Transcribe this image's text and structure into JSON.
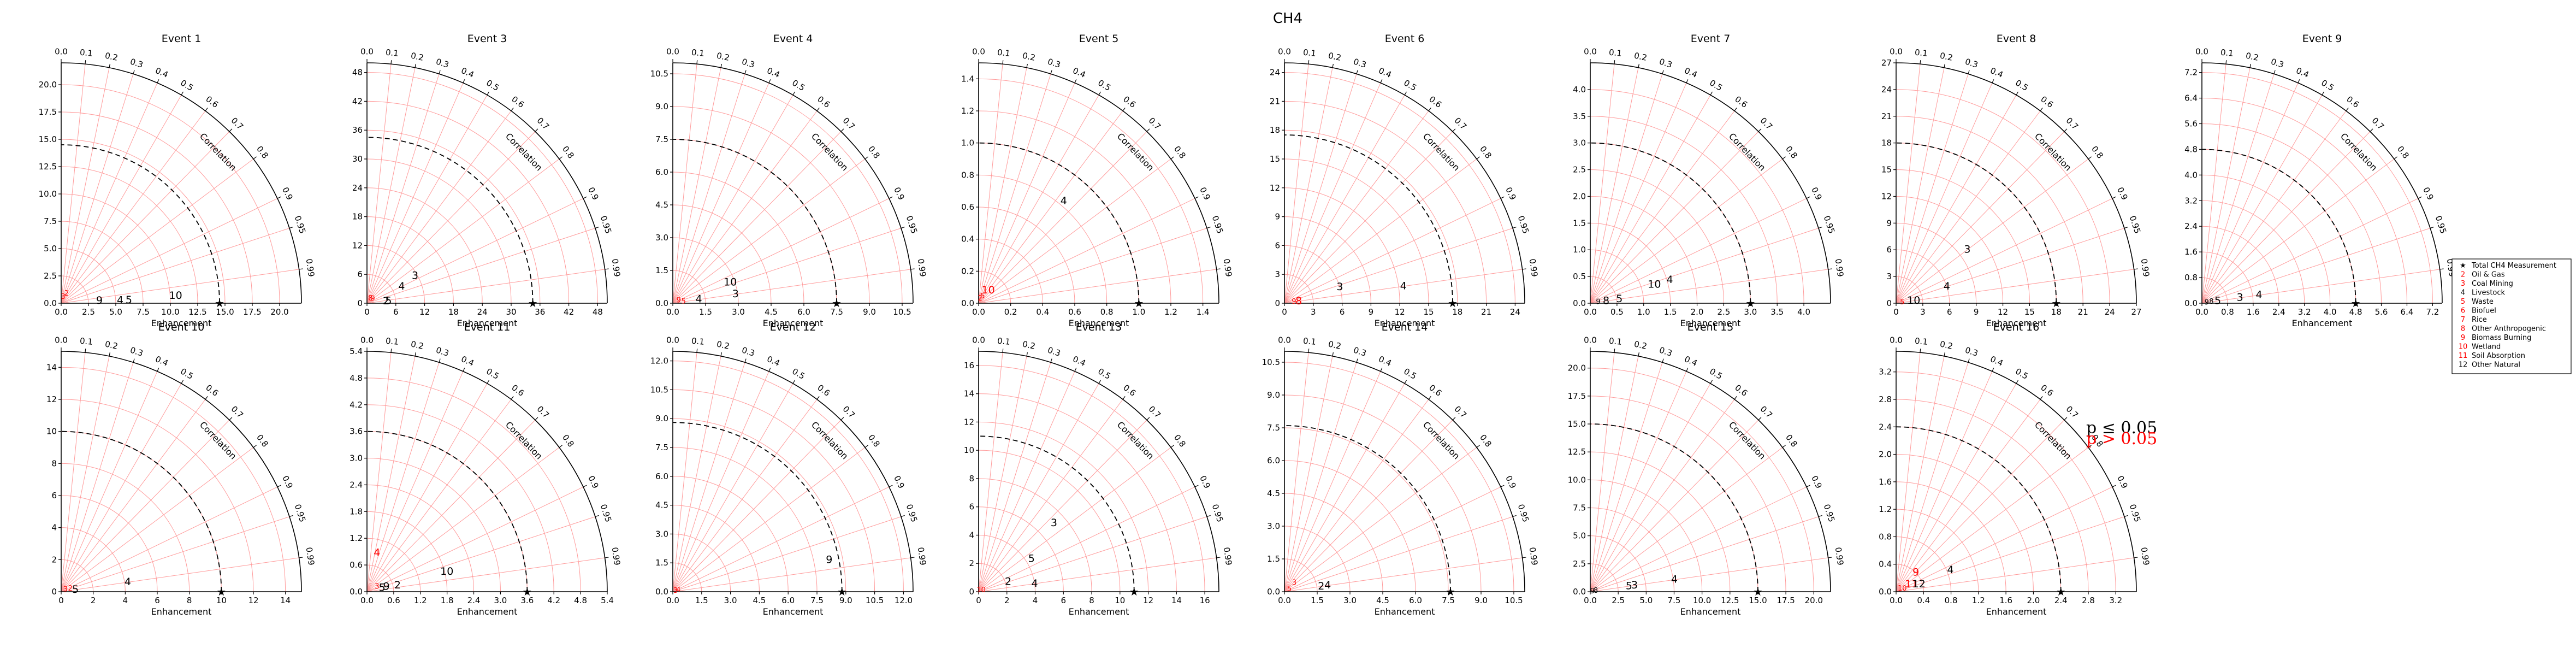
{
  "figure_title": "CH4",
  "axis_labels": {
    "x": "Enhancement",
    "correlation": "Correlation"
  },
  "correlation_ticks": [
    "0.0",
    "0.1",
    "0.2",
    "0.3",
    "0.4",
    "0.5",
    "0.6",
    "0.7",
    "0.8",
    "0.9",
    "0.95",
    "0.99"
  ],
  "colors": {
    "grid": "#ff9a9a",
    "axis": "#000000",
    "significant": "#000000",
    "not_significant": "#ff0000"
  },
  "significance_legend": {
    "significant": "p ≤ 0.05",
    "not_significant": "p > 0.05"
  },
  "legend": [
    {
      "marker": "★",
      "label": "Total CH4 Measurement",
      "color": "#000000"
    },
    {
      "marker": "2",
      "label": "Oil & Gas",
      "color": "#ff0000"
    },
    {
      "marker": "3",
      "label": "Coal Mining",
      "color": "#ff0000"
    },
    {
      "marker": "4",
      "label": "Livestock",
      "color": "#000000"
    },
    {
      "marker": "5",
      "label": "Waste",
      "color": "#ff0000"
    },
    {
      "marker": "6",
      "label": "Biofuel",
      "color": "#ff0000"
    },
    {
      "marker": "7",
      "label": "Rice",
      "color": "#ff0000"
    },
    {
      "marker": "8",
      "label": "Other Anthropogenic",
      "color": "#ff0000"
    },
    {
      "marker": "9",
      "label": "Biomass Burning",
      "color": "#ff0000"
    },
    {
      "marker": "10",
      "label": "Wetland",
      "color": "#ff0000"
    },
    {
      "marker": "11",
      "label": "Soil Absorption",
      "color": "#ff0000"
    },
    {
      "marker": "12",
      "label": "Other Natural",
      "color": "#000000"
    }
  ],
  "chart_data": [
    {
      "type": "scatter",
      "title": "Event 1",
      "max": 22,
      "ticks": [
        "0.0",
        "2.5",
        "5.0",
        "7.5",
        "10.0",
        "12.5",
        "15.0",
        "17.5",
        "20.0"
      ],
      "ref": 14.5,
      "points": [
        {
          "label": "4",
          "r": 5.4,
          "corr": 0.999,
          "sig": true
        },
        {
          "label": "5",
          "r": 6.2,
          "corr": 0.999,
          "sig": true
        },
        {
          "label": "9",
          "r": 3.5,
          "corr": 0.998,
          "sig": true
        },
        {
          "label": "10",
          "r": 10.5,
          "corr": 0.998,
          "sig": true
        },
        {
          "label": "2",
          "r": 1.0,
          "corr": 0.5,
          "sig": false
        },
        {
          "label": "3",
          "r": 0.6,
          "corr": 0.3,
          "sig": false
        }
      ]
    },
    {
      "type": "scatter",
      "title": "Event 3",
      "max": 50,
      "ticks": [
        "0",
        "6",
        "12",
        "18",
        "24",
        "30",
        "36",
        "42",
        "48"
      ],
      "ref": 34.5,
      "points": [
        {
          "label": "3",
          "r": 11.5,
          "corr": 0.87,
          "sig": true
        },
        {
          "label": "4",
          "r": 8.0,
          "corr": 0.9,
          "sig": true
        },
        {
          "label": "5",
          "r": 4.5,
          "corr": 0.995,
          "sig": true
        },
        {
          "label": "2",
          "r": 4.0,
          "corr": 0.995,
          "sig": true
        },
        {
          "label": "8",
          "r": 1.2,
          "corr": 0.6,
          "sig": false
        },
        {
          "label": "9",
          "r": 1.5,
          "corr": 0.8,
          "sig": false
        }
      ]
    },
    {
      "type": "scatter",
      "title": "Event 4",
      "max": 11,
      "ticks": [
        "0.0",
        "1.5",
        "3.0",
        "4.5",
        "6.0",
        "7.5",
        "9.0",
        "10.5"
      ],
      "ref": 7.5,
      "points": [
        {
          "label": "3",
          "r": 2.9,
          "corr": 0.99,
          "sig": true
        },
        {
          "label": "4",
          "r": 1.2,
          "corr": 0.99,
          "sig": true
        },
        {
          "label": "10",
          "r": 2.8,
          "corr": 0.94,
          "sig": true
        },
        {
          "label": "5",
          "r": 0.5,
          "corr": 0.99,
          "sig": false
        },
        {
          "label": "9",
          "r": 0.3,
          "corr": 0.9,
          "sig": false
        }
      ]
    },
    {
      "type": "scatter",
      "title": "Event 5",
      "max": 1.5,
      "ticks": [
        "0.0",
        "0.2",
        "0.4",
        "0.6",
        "0.8",
        "1.0",
        "1.2",
        "1.4"
      ],
      "ref": 1.0,
      "points": [
        {
          "label": "4",
          "r": 0.83,
          "corr": 0.64,
          "sig": true
        },
        {
          "label": "10",
          "r": 0.1,
          "corr": 0.6,
          "sig": false
        },
        {
          "label": "5",
          "r": 0.05,
          "corr": 0.5,
          "sig": false
        },
        {
          "label": "2",
          "r": 0.03,
          "corr": 0.3,
          "sig": false
        }
      ]
    },
    {
      "type": "scatter",
      "title": "Event 6",
      "max": 25,
      "ticks": [
        "0",
        "3",
        "6",
        "9",
        "12",
        "15",
        "18",
        "21",
        "24"
      ],
      "ref": 17.5,
      "points": [
        {
          "label": "3",
          "r": 6.0,
          "corr": 0.96,
          "sig": true
        },
        {
          "label": "4",
          "r": 12.5,
          "corr": 0.99,
          "sig": true
        },
        {
          "label": "8",
          "r": 1.5,
          "corr": 0.99,
          "sig": false
        },
        {
          "label": "9",
          "r": 1.0,
          "corr": 0.99,
          "sig": false
        }
      ]
    },
    {
      "type": "scatter",
      "title": "Event 7",
      "max": 4.5,
      "ticks": [
        "0.0",
        "0.5",
        "1.0",
        "1.5",
        "2.0",
        "2.5",
        "3.0",
        "3.5",
        "4.0"
      ],
      "ref": 3.0,
      "points": [
        {
          "label": "4",
          "r": 1.55,
          "corr": 0.96,
          "sig": true
        },
        {
          "label": "10",
          "r": 1.25,
          "corr": 0.96,
          "sig": true
        },
        {
          "label": "5",
          "r": 0.55,
          "corr": 0.99,
          "sig": true
        },
        {
          "label": "8",
          "r": 0.3,
          "corr": 0.99,
          "sig": true
        },
        {
          "label": "9",
          "r": 0.15,
          "corr": 0.99,
          "sig": true
        }
      ]
    },
    {
      "type": "scatter",
      "title": "Event 8",
      "max": 27,
      "ticks": [
        "0",
        "3",
        "6",
        "9",
        "12",
        "15",
        "18",
        "21",
        "24",
        "27"
      ],
      "ref": 18.0,
      "points": [
        {
          "label": "3",
          "r": 10.0,
          "corr": 0.8,
          "sig": true
        },
        {
          "label": "4",
          "r": 6.0,
          "corr": 0.95,
          "sig": true
        },
        {
          "label": "10",
          "r": 2.0,
          "corr": 0.99,
          "sig": true
        },
        {
          "label": "5",
          "r": 0.7,
          "corr": 0.99,
          "sig": false
        }
      ]
    },
    {
      "type": "scatter",
      "title": "Event 9",
      "max": 7.5,
      "ticks": [
        "0.0",
        "0.8",
        "1.6",
        "2.4",
        "3.2",
        "4.0",
        "4.8",
        "5.6",
        "6.4",
        "7.2"
      ],
      "ref": 4.8,
      "points": [
        {
          "label": "3",
          "r": 1.2,
          "corr": 0.99,
          "sig": true
        },
        {
          "label": "4",
          "r": 1.8,
          "corr": 0.99,
          "sig": true
        },
        {
          "label": "5",
          "r": 0.5,
          "corr": 0.99,
          "sig": true
        },
        {
          "label": "8",
          "r": 0.3,
          "corr": 0.99,
          "sig": true
        },
        {
          "label": "9",
          "r": 0.15,
          "corr": 0.99,
          "sig": true
        }
      ]
    },
    {
      "type": "scatter",
      "title": "Event 10",
      "max": 15,
      "ticks": [
        "0",
        "2",
        "4",
        "6",
        "8",
        "10",
        "12",
        "14"
      ],
      "ref": 10.0,
      "points": [
        {
          "label": "4",
          "r": 4.2,
          "corr": 0.99,
          "sig": true
        },
        {
          "label": "5",
          "r": 0.9,
          "corr": 0.99,
          "sig": true
        },
        {
          "label": "2",
          "r": 0.6,
          "corr": 0.95,
          "sig": false
        },
        {
          "label": "3",
          "r": 0.3,
          "corr": 0.9,
          "sig": false
        }
      ]
    },
    {
      "type": "scatter",
      "title": "Event 11",
      "max": 5.4,
      "ticks": [
        "0.0",
        "0.6",
        "1.2",
        "1.8",
        "2.4",
        "3.0",
        "3.6",
        "4.2",
        "4.8",
        "5.4"
      ],
      "ref": 3.6,
      "points": [
        {
          "label": "2",
          "r": 0.7,
          "corr": 0.98,
          "sig": true
        },
        {
          "label": "10",
          "r": 1.85,
          "corr": 0.97,
          "sig": true
        },
        {
          "label": "4",
          "r": 0.9,
          "corr": 0.25,
          "sig": false
        },
        {
          "label": "3",
          "r": 0.25,
          "corr": 0.9,
          "sig": false
        },
        {
          "label": "5",
          "r": 0.35,
          "corr": 0.97,
          "sig": true
        },
        {
          "label": "9",
          "r": 0.45,
          "corr": 0.97,
          "sig": true
        }
      ]
    },
    {
      "type": "scatter",
      "title": "Event 12",
      "max": 12.5,
      "ticks": [
        "0.0",
        "1.5",
        "3.0",
        "4.5",
        "6.0",
        "7.5",
        "9.0",
        "10.5",
        "12.0"
      ],
      "ref": 8.8,
      "points": [
        {
          "label": "9",
          "r": 8.3,
          "corr": 0.98,
          "sig": true
        },
        {
          "label": "4",
          "r": 0.3,
          "corr": 0.97,
          "sig": false
        },
        {
          "label": "3",
          "r": 0.15,
          "corr": 0.97,
          "sig": false
        }
      ]
    },
    {
      "type": "scatter",
      "title": "Event 13",
      "max": 17,
      "ticks": [
        "0",
        "2",
        "4",
        "6",
        "8",
        "10",
        "12",
        "14",
        "16"
      ],
      "ref": 11.0,
      "points": [
        {
          "label": "3",
          "r": 7.2,
          "corr": 0.74,
          "sig": true
        },
        {
          "label": "5",
          "r": 4.4,
          "corr": 0.85,
          "sig": true
        },
        {
          "label": "2",
          "r": 2.2,
          "corr": 0.95,
          "sig": true
        },
        {
          "label": "4",
          "r": 4.0,
          "corr": 0.99,
          "sig": true
        },
        {
          "label": "10",
          "r": 0.2,
          "corr": 0.9,
          "sig": false
        }
      ]
    },
    {
      "type": "scatter",
      "title": "Event 14",
      "max": 11,
      "ticks": [
        "0.0",
        "1.5",
        "3.0",
        "4.5",
        "6.0",
        "7.5",
        "9.0",
        "10.5"
      ],
      "ref": 7.6,
      "points": [
        {
          "label": "2",
          "r": 1.7,
          "corr": 0.99,
          "sig": true
        },
        {
          "label": "4",
          "r": 2.0,
          "corr": 0.99,
          "sig": true
        },
        {
          "label": "3",
          "r": 0.6,
          "corr": 0.75,
          "sig": false
        },
        {
          "label": "5",
          "r": 0.25,
          "corr": 0.9,
          "sig": false
        }
      ]
    },
    {
      "type": "scatter",
      "title": "Event 15",
      "max": 21.5,
      "ticks": [
        "0.0",
        "2.5",
        "5.0",
        "7.5",
        "10.0",
        "12.5",
        "15.0",
        "17.5",
        "20.0"
      ],
      "ref": 15.0,
      "points": [
        {
          "label": "3",
          "r": 4.0,
          "corr": 0.99,
          "sig": true
        },
        {
          "label": "5",
          "r": 3.5,
          "corr": 0.99,
          "sig": true
        },
        {
          "label": "4",
          "r": 7.6,
          "corr": 0.99,
          "sig": true
        },
        {
          "label": "8",
          "r": 0.5,
          "corr": 0.99,
          "sig": true
        },
        {
          "label": "9",
          "r": 0.2,
          "corr": 0.99,
          "sig": true
        }
      ]
    },
    {
      "type": "scatter",
      "title": "Event 16",
      "max": 3.5,
      "ticks": [
        "0.0",
        "0.4",
        "0.8",
        "1.2",
        "1.6",
        "2.0",
        "2.4",
        "2.8",
        "3.2"
      ],
      "ref": 2.4,
      "points": [
        {
          "label": "4",
          "r": 0.85,
          "corr": 0.93,
          "sig": true
        },
        {
          "label": "9",
          "r": 0.4,
          "corr": 0.72,
          "sig": false
        },
        {
          "label": "11",
          "r": 0.25,
          "corr": 0.9,
          "sig": false
        },
        {
          "label": "10",
          "r": 0.1,
          "corr": 0.9,
          "sig": false
        },
        {
          "label": "12",
          "r": 0.35,
          "corr": 0.95,
          "sig": true
        }
      ]
    }
  ]
}
